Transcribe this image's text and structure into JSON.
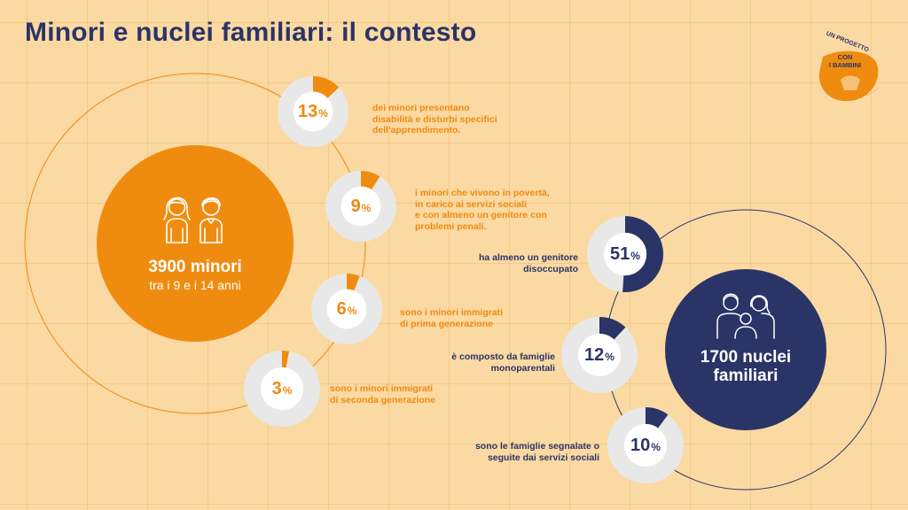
{
  "title": "Minori e nuclei familiari: il contesto",
  "colors": {
    "background": "#fbd9a3",
    "orange": "#ef8c0f",
    "navy": "#2b3467",
    "donut_track": "#e8e8e8"
  },
  "minori": {
    "number": "3900 minori",
    "subtitle": "tra i 9 e i 14 anni",
    "icon": "two-children-icon",
    "stats": [
      {
        "value": "13",
        "unit": "%",
        "percent": 13,
        "text": "dei minori presentano\ndisabilità e disturbi specifici\ndell'apprendimento."
      },
      {
        "value": "9",
        "unit": "%",
        "percent": 9,
        "text": "i minori che vivono in povertà,\nin carico ai servizi sociali\ne con almeno un genitore con\nproblemi penali."
      },
      {
        "value": "6",
        "unit": "%",
        "percent": 6,
        "text": "sono i minori immigrati\ndi prima generazione"
      },
      {
        "value": "3",
        "unit": "%",
        "percent": 3,
        "text": "sono i minori immigrati\ndi seconda generazione"
      }
    ]
  },
  "nuclei": {
    "number": "1700 nuclei\nfamiliari",
    "icon": "family-icon",
    "stats": [
      {
        "value": "51",
        "unit": "%",
        "percent": 51,
        "text": "ha almeno un genitore\ndisoccupato"
      },
      {
        "value": "12",
        "unit": "%",
        "percent": 12,
        "text": "è composto da famiglie\nmonoparentali"
      },
      {
        "value": "10",
        "unit": "%",
        "percent": 10,
        "text": "sono le famiglie segnalate o\nseguite dai servizi sociali"
      }
    ]
  },
  "logo": {
    "top": "UN PROGETTO",
    "name": "CON\nI BAMBINI"
  }
}
